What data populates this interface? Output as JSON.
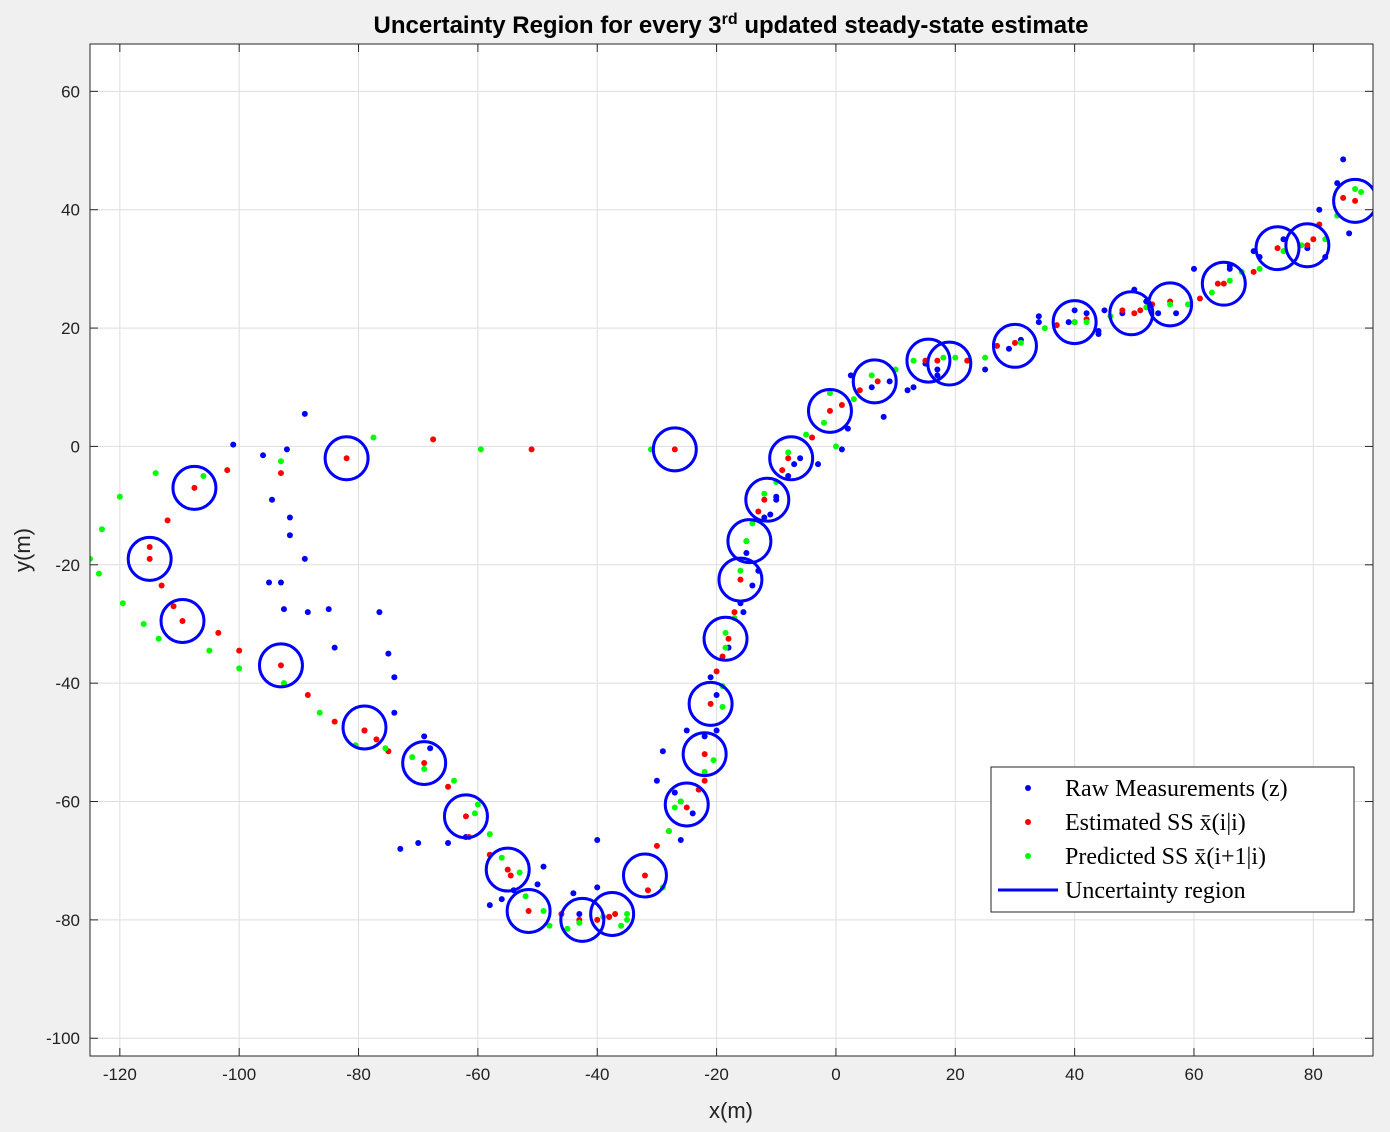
{
  "chart_data": {
    "type": "scatter",
    "title": "Uncertainty Region for every 3",
    "title_sup": "rd",
    "title_rest": " updated steady-state estimate",
    "xlabel": "x(m)",
    "ylabel": "y(m)",
    "xlim": [
      -125,
      90
    ],
    "ylim": [
      -103,
      68
    ],
    "xticks": [
      -120,
      -100,
      -80,
      -60,
      -40,
      -20,
      0,
      20,
      40,
      60,
      80
    ],
    "yticks": [
      -100,
      -80,
      -60,
      -40,
      -20,
      0,
      20,
      40,
      60
    ],
    "grid": true,
    "legend_position": "bottom-right",
    "circle_radius": 3.6,
    "series": [
      {
        "name": "Raw Measurements (z)",
        "color": "#0000ff",
        "marker": "dot",
        "points": [
          [
            -101,
            0.3
          ],
          [
            -96,
            -1.5
          ],
          [
            -94.5,
            -9
          ],
          [
            -92,
            -0.5
          ],
          [
            -91.5,
            -12
          ],
          [
            -91.5,
            -15
          ],
          [
            -89,
            5.5
          ],
          [
            -89,
            -19
          ],
          [
            -95,
            -23
          ],
          [
            -93,
            -23
          ],
          [
            -92.5,
            -27.5
          ],
          [
            -88.5,
            -28
          ],
          [
            -85,
            -27.5
          ],
          [
            -84,
            -34
          ],
          [
            -76.5,
            -28
          ],
          [
            -75,
            -35
          ],
          [
            -74,
            -39
          ],
          [
            -74,
            -45
          ],
          [
            -79,
            -48
          ],
          [
            -69,
            -49
          ],
          [
            -68,
            -51
          ],
          [
            -73,
            -68
          ],
          [
            -70,
            -67
          ],
          [
            -65,
            -67
          ],
          [
            -62,
            -66
          ],
          [
            -58,
            -77.5
          ],
          [
            -56,
            -76.5
          ],
          [
            -54,
            -75
          ],
          [
            -49,
            -71
          ],
          [
            -50,
            -74
          ],
          [
            -44,
            -75.5
          ],
          [
            -43,
            -79
          ],
          [
            -40,
            -66.5
          ],
          [
            -40,
            -74.5
          ],
          [
            -38,
            -79.5
          ],
          [
            -30,
            -56.5
          ],
          [
            -29,
            -51.5
          ],
          [
            -27,
            -58.5
          ],
          [
            -26,
            -60
          ],
          [
            -26,
            -66.5
          ],
          [
            -25,
            -48
          ],
          [
            -24,
            -62
          ],
          [
            -22,
            -49
          ],
          [
            -21,
            -39
          ],
          [
            -20,
            -42
          ],
          [
            -20,
            -48
          ],
          [
            -18,
            -34
          ],
          [
            -16,
            -26.5
          ],
          [
            -15.5,
            -28
          ],
          [
            -15,
            -18
          ],
          [
            -14,
            -23.5
          ],
          [
            -13,
            -21
          ],
          [
            -12,
            -12
          ],
          [
            -11,
            -11.5
          ],
          [
            -10,
            -8.5
          ],
          [
            -10,
            -9
          ],
          [
            -8,
            -5
          ],
          [
            -7,
            -3
          ],
          [
            -6,
            -2
          ],
          [
            -3,
            -3
          ],
          [
            1,
            -0.5
          ],
          [
            2,
            3
          ],
          [
            2.5,
            12
          ],
          [
            6,
            10
          ],
          [
            8,
            5
          ],
          [
            9,
            11
          ],
          [
            12,
            9.5
          ],
          [
            13,
            10
          ],
          [
            15,
            14
          ],
          [
            17,
            13
          ],
          [
            17,
            12
          ],
          [
            25,
            13
          ],
          [
            29,
            16.5
          ],
          [
            31,
            18
          ],
          [
            34,
            21
          ],
          [
            34,
            22
          ],
          [
            39,
            21
          ],
          [
            40,
            23
          ],
          [
            42,
            22.5
          ],
          [
            44,
            19
          ],
          [
            44,
            19.5
          ],
          [
            45,
            23
          ],
          [
            48,
            22.5
          ],
          [
            50,
            26.5
          ],
          [
            52,
            24.5
          ],
          [
            54,
            22.5
          ],
          [
            57,
            22.5
          ],
          [
            60,
            30
          ],
          [
            66,
            30.5
          ],
          [
            66,
            30
          ],
          [
            70,
            33
          ],
          [
            71,
            32
          ],
          [
            75,
            35
          ],
          [
            79,
            33.5
          ],
          [
            81,
            40
          ],
          [
            82,
            32
          ],
          [
            84,
            44.5
          ],
          [
            85,
            48.5
          ],
          [
            86,
            36
          ]
        ]
      },
      {
        "name": "Estimated SS x̄(i|i)",
        "color": "#ff0000",
        "marker": "dot",
        "points": [
          [
            -27,
            -0.5
          ],
          [
            -51,
            -0.5
          ],
          [
            -67.5,
            1.2
          ],
          [
            -82,
            -2
          ],
          [
            -93,
            -4.5
          ],
          [
            -102,
            -4
          ],
          [
            -107.5,
            -7
          ],
          [
            -112,
            -12.5
          ],
          [
            -115,
            -17
          ],
          [
            -115,
            -19
          ],
          [
            -113,
            -23.5
          ],
          [
            -111,
            -27
          ],
          [
            -109.5,
            -29.5
          ],
          [
            -103.5,
            -31.5
          ],
          [
            -100,
            -34.5
          ],
          [
            -93,
            -37
          ],
          [
            -88.5,
            -42
          ],
          [
            -84,
            -46.5
          ],
          [
            -79,
            -48
          ],
          [
            -77,
            -49.5
          ],
          [
            -75,
            -51.5
          ],
          [
            -69,
            -53.5
          ],
          [
            -65,
            -57.5
          ],
          [
            -62,
            -62.5
          ],
          [
            -61.5,
            -66
          ],
          [
            -58,
            -69
          ],
          [
            -55,
            -71.5
          ],
          [
            -54.5,
            -72.5
          ],
          [
            -51.5,
            -78.5
          ],
          [
            -46,
            -79
          ],
          [
            -43,
            -80
          ],
          [
            -40,
            -80
          ],
          [
            -38,
            -79.5
          ],
          [
            -37,
            -79
          ],
          [
            -32,
            -72.5
          ],
          [
            -31.5,
            -75
          ],
          [
            -30,
            -67.5
          ],
          [
            -28,
            -65
          ],
          [
            -25,
            -61
          ],
          [
            -23,
            -58
          ],
          [
            -22,
            -56.5
          ],
          [
            -22,
            -52
          ],
          [
            -21,
            -43.5
          ],
          [
            -20,
            -38
          ],
          [
            -19,
            -35.5
          ],
          [
            -18,
            -32.5
          ],
          [
            -17,
            -28
          ],
          [
            -16,
            -22.5
          ],
          [
            -15,
            -16
          ],
          [
            -13,
            -11
          ],
          [
            -12,
            -9
          ],
          [
            -9,
            -4
          ],
          [
            -8,
            -2
          ],
          [
            -4,
            1.5
          ],
          [
            -1,
            6
          ],
          [
            1,
            7
          ],
          [
            4,
            9.5
          ],
          [
            7,
            11
          ],
          [
            15,
            14.5
          ],
          [
            17,
            14.5
          ],
          [
            22,
            14.5
          ],
          [
            27,
            17
          ],
          [
            30,
            17.5
          ],
          [
            37,
            20.5
          ],
          [
            40,
            21
          ],
          [
            42,
            21.5
          ],
          [
            48,
            23
          ],
          [
            50,
            22.5
          ],
          [
            51,
            23
          ],
          [
            53,
            24
          ],
          [
            56,
            24.5
          ],
          [
            61,
            25
          ],
          [
            64,
            27.5
          ],
          [
            65,
            27.5
          ],
          [
            70,
            29.5
          ],
          [
            74,
            33.5
          ],
          [
            79,
            34
          ],
          [
            80,
            35
          ],
          [
            81,
            37.5
          ],
          [
            85,
            42
          ],
          [
            87,
            41.5
          ]
        ]
      },
      {
        "name": "Predicted SS x̄(i+1|i)",
        "color": "#00ff00",
        "marker": "dot",
        "points": [
          [
            -31,
            -0.5
          ],
          [
            -59.5,
            -0.5
          ],
          [
            -77.5,
            1.5
          ],
          [
            -93,
            -2.5
          ],
          [
            -106,
            -5
          ],
          [
            -114,
            -4.5
          ],
          [
            -120,
            -8.5
          ],
          [
            -123,
            -14
          ],
          [
            -125,
            -19
          ],
          [
            -123.5,
            -21.5
          ],
          [
            -119.5,
            -26.5
          ],
          [
            -116,
            -30
          ],
          [
            -113.5,
            -32.5
          ],
          [
            -105,
            -34.5
          ],
          [
            -100,
            -37.5
          ],
          [
            -92.5,
            -40
          ],
          [
            -86.5,
            -45
          ],
          [
            -80.5,
            -50.5
          ],
          [
            -75.5,
            -51
          ],
          [
            -71,
            -52.5
          ],
          [
            -69,
            -54.5
          ],
          [
            -64,
            -56.5
          ],
          [
            -60,
            -60.5
          ],
          [
            -60.5,
            -62
          ],
          [
            -58,
            -65.5
          ],
          [
            -56,
            -69.5
          ],
          [
            -53,
            -72
          ],
          [
            -52,
            -76
          ],
          [
            -49,
            -78.5
          ],
          [
            -48,
            -81
          ],
          [
            -45,
            -81.5
          ],
          [
            -43,
            -80.5
          ],
          [
            -39,
            -79.5
          ],
          [
            -36,
            -81
          ],
          [
            -35,
            -79
          ],
          [
            -35,
            -80
          ],
          [
            -29,
            -74.5
          ],
          [
            -28,
            -65
          ],
          [
            -27,
            -61
          ],
          [
            -26,
            -60
          ],
          [
            -22,
            -55
          ],
          [
            -20.5,
            -53
          ],
          [
            -19,
            -44
          ],
          [
            -19,
            -40.5
          ],
          [
            -18.5,
            -34
          ],
          [
            -18.5,
            -31.5
          ],
          [
            -17,
            -29
          ],
          [
            -16,
            -21
          ],
          [
            -15,
            -16
          ],
          [
            -14,
            -13
          ],
          [
            -12,
            -8
          ],
          [
            -10,
            -6
          ],
          [
            -8,
            -1
          ],
          [
            -5,
            2
          ],
          [
            -2,
            4
          ],
          [
            -1,
            9
          ],
          [
            0,
            0
          ],
          [
            3,
            8
          ],
          [
            6,
            12
          ],
          [
            10,
            13
          ],
          [
            13,
            14.5
          ],
          [
            18,
            15
          ],
          [
            20,
            15
          ],
          [
            25,
            15
          ],
          [
            31,
            17.5
          ],
          [
            35,
            20
          ],
          [
            40,
            21
          ],
          [
            42,
            21
          ],
          [
            46,
            22
          ],
          [
            52,
            23.5
          ],
          [
            56,
            24
          ],
          [
            59,
            24
          ],
          [
            63,
            26
          ],
          [
            66,
            28
          ],
          [
            68,
            29.5
          ],
          [
            71,
            30
          ],
          [
            75,
            33
          ],
          [
            78,
            34
          ],
          [
            82,
            35
          ],
          [
            84,
            39
          ],
          [
            87,
            43.5
          ],
          [
            88,
            43
          ]
        ]
      },
      {
        "name": "Uncertainty region",
        "color": "#0000ff",
        "marker": "circle",
        "centers": [
          [
            -27,
            -0.5
          ],
          [
            -82,
            -2
          ],
          [
            -107.5,
            -7
          ],
          [
            -115,
            -19
          ],
          [
            -109.5,
            -29.5
          ],
          [
            -93,
            -37
          ],
          [
            -79,
            -47.5
          ],
          [
            -69,
            -53.5
          ],
          [
            -62,
            -62.5
          ],
          [
            -55,
            -71.5
          ],
          [
            -51.5,
            -78.5
          ],
          [
            -42.5,
            -80
          ],
          [
            -37.5,
            -79
          ],
          [
            -32,
            -72.5
          ],
          [
            -25,
            -60.5
          ],
          [
            -22,
            -52
          ],
          [
            -21,
            -43.5
          ],
          [
            -18.5,
            -32.5
          ],
          [
            -16,
            -22.5
          ],
          [
            -14.5,
            -16
          ],
          [
            -11.5,
            -9
          ],
          [
            -7.5,
            -2
          ],
          [
            -1,
            6
          ],
          [
            6.5,
            11
          ],
          [
            15.5,
            14.5
          ],
          [
            19,
            14
          ],
          [
            30,
            17
          ],
          [
            40,
            21
          ],
          [
            49.5,
            22.5
          ],
          [
            56,
            24
          ],
          [
            65,
            27.5
          ],
          [
            74,
            33.5
          ],
          [
            79,
            34
          ],
          [
            87,
            41.5
          ]
        ]
      }
    ]
  }
}
